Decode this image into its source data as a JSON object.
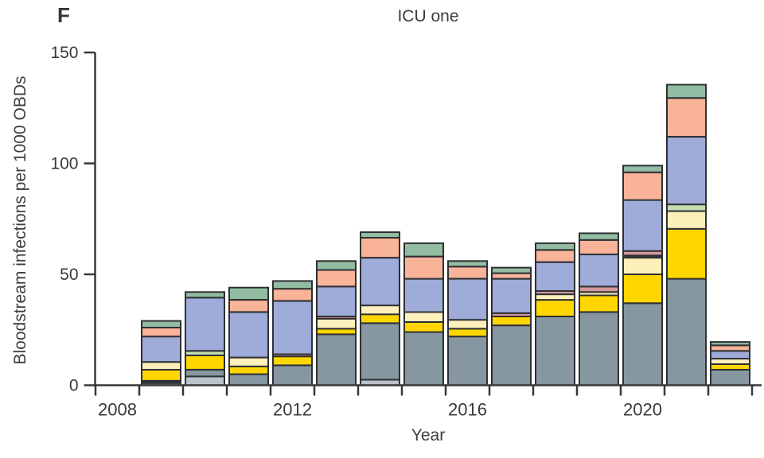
{
  "figure": {
    "panel_label": "F",
    "title": "ICU one",
    "xlabel": "Year",
    "ylabel": "Bloodstream infections per 1000 OBDs"
  },
  "colors": {
    "axis": "#37383a",
    "text": "#3a3a3c",
    "segment_border": "#2e3033",
    "background": "#ffffff"
  },
  "chart_data": {
    "type": "bar",
    "stacked": true,
    "title": "ICU one",
    "xlabel": "Year",
    "ylabel": "Bloodstream infections per 1000 OBDs",
    "ylim": [
      0,
      150
    ],
    "yticks": [
      0,
      50,
      100,
      150
    ],
    "grid": false,
    "legend": "none",
    "x_intervals": {
      "start_year": 2008,
      "end_year": 2022,
      "labeled_years": [
        2008,
        2012,
        2016,
        2020
      ],
      "note": "ticks mark year-interval boundaries; bars sit between ticks; 2008 interval has no bar"
    },
    "segment_colors": {
      "lightgray": "#b9c2c9",
      "slate": "#8797a1",
      "dark": "#3a3e45",
      "yellow": "#ffd600",
      "cream": "#fdf0bb",
      "lightgreen": "#c6dcb2",
      "rose": "#d5989d",
      "periwinkle": "#9fabd8",
      "salmon": "#f8b399",
      "green": "#92bda3"
    },
    "bars": [
      {
        "year": 2009,
        "segments": [
          [
            "slate",
            1
          ],
          [
            "dark",
            1
          ],
          [
            "yellow",
            5
          ],
          [
            "cream",
            3.5
          ],
          [
            "periwinkle",
            11.5
          ],
          [
            "salmon",
            4
          ],
          [
            "green",
            3
          ]
        ]
      },
      {
        "year": 2010,
        "segments": [
          [
            "lightgray",
            4
          ],
          [
            "slate",
            3
          ],
          [
            "yellow",
            6.5
          ],
          [
            "lightgreen",
            2
          ],
          [
            "periwinkle",
            24
          ],
          [
            "green",
            2.5
          ]
        ]
      },
      {
        "year": 2011,
        "segments": [
          [
            "slate",
            5
          ],
          [
            "yellow",
            3.5
          ],
          [
            "cream",
            4
          ],
          [
            "periwinkle",
            20.5
          ],
          [
            "salmon",
            5.5
          ],
          [
            "green",
            5.5
          ]
        ]
      },
      {
        "year": 2012,
        "segments": [
          [
            "slate",
            9
          ],
          [
            "yellow",
            4
          ],
          [
            "rose",
            1
          ],
          [
            "periwinkle",
            24
          ],
          [
            "salmon",
            5.5
          ],
          [
            "green",
            3.5
          ]
        ]
      },
      {
        "year": 2013,
        "segments": [
          [
            "slate",
            23
          ],
          [
            "yellow",
            2.5
          ],
          [
            "cream",
            4.5
          ],
          [
            "rose",
            1
          ],
          [
            "periwinkle",
            13.5
          ],
          [
            "salmon",
            7.5
          ],
          [
            "green",
            4
          ]
        ]
      },
      {
        "year": 2014,
        "segments": [
          [
            "lightgray",
            2.5
          ],
          [
            "slate",
            25.5
          ],
          [
            "yellow",
            4
          ],
          [
            "cream",
            4
          ],
          [
            "periwinkle",
            21.5
          ],
          [
            "salmon",
            9
          ],
          [
            "green",
            2.5
          ]
        ]
      },
      {
        "year": 2015,
        "segments": [
          [
            "slate",
            24
          ],
          [
            "yellow",
            4.5
          ],
          [
            "cream",
            4.5
          ],
          [
            "periwinkle",
            15
          ],
          [
            "salmon",
            10
          ],
          [
            "green",
            6
          ]
        ]
      },
      {
        "year": 2016,
        "segments": [
          [
            "slate",
            22
          ],
          [
            "yellow",
            3.5
          ],
          [
            "cream",
            4
          ],
          [
            "periwinkle",
            18.5
          ],
          [
            "salmon",
            5.5
          ],
          [
            "green",
            2.5
          ]
        ]
      },
      {
        "year": 2017,
        "segments": [
          [
            "slate",
            27
          ],
          [
            "yellow",
            4
          ],
          [
            "rose",
            1.5
          ],
          [
            "periwinkle",
            15.5
          ],
          [
            "salmon",
            2.5
          ],
          [
            "green",
            2.5
          ]
        ]
      },
      {
        "year": 2018,
        "segments": [
          [
            "slate",
            31
          ],
          [
            "yellow",
            7.5
          ],
          [
            "cream",
            2.5
          ],
          [
            "rose",
            1.5
          ],
          [
            "periwinkle",
            13
          ],
          [
            "salmon",
            5.5
          ],
          [
            "green",
            3
          ]
        ]
      },
      {
        "year": 2019,
        "segments": [
          [
            "slate",
            33
          ],
          [
            "yellow",
            7.5
          ],
          [
            "cream",
            1.5
          ],
          [
            "rose",
            2.5
          ],
          [
            "periwinkle",
            14.5
          ],
          [
            "salmon",
            6.5
          ],
          [
            "green",
            3
          ]
        ]
      },
      {
        "year": 2020,
        "segments": [
          [
            "slate",
            37
          ],
          [
            "yellow",
            13
          ],
          [
            "cream",
            7.5
          ],
          [
            "dark",
            1
          ],
          [
            "rose",
            2
          ],
          [
            "periwinkle",
            23
          ],
          [
            "salmon",
            12.5
          ],
          [
            "green",
            3
          ]
        ]
      },
      {
        "year": 2021,
        "segments": [
          [
            "slate",
            48
          ],
          [
            "yellow",
            22.5
          ],
          [
            "cream",
            8
          ],
          [
            "lightgreen",
            3
          ],
          [
            "periwinkle",
            30.5
          ],
          [
            "salmon",
            17.5
          ],
          [
            "green",
            6
          ]
        ]
      },
      {
        "year": 2022,
        "segments": [
          [
            "slate",
            7
          ],
          [
            "yellow",
            2.5
          ],
          [
            "cream",
            2.5
          ],
          [
            "periwinkle",
            3.5
          ],
          [
            "salmon",
            2.5
          ],
          [
            "green",
            1.5
          ]
        ]
      }
    ]
  }
}
